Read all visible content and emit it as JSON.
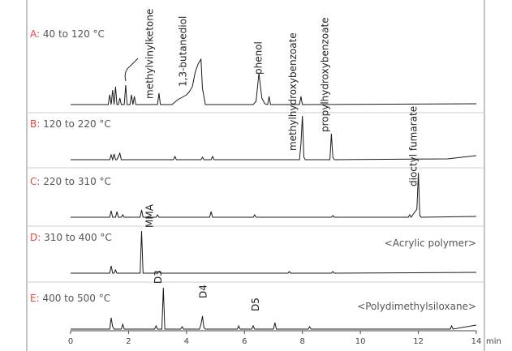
{
  "chart_data": {
    "type": "line",
    "xlim": [
      0,
      14
    ],
    "xticks": [
      0,
      2,
      4,
      6,
      8,
      10,
      12,
      14
    ],
    "xlabel": "min",
    "ylim": [
      0,
      60
    ],
    "series": [
      {
        "name": "A:",
        "label": "40 to 120 °C",
        "color": "#1a1a1a",
        "x": [
          0,
          1.3,
          1.35,
          1.4,
          1.45,
          1.5,
          1.55,
          1.6,
          1.65,
          1.7,
          1.75,
          1.85,
          1.9,
          1.95,
          2.05,
          2.1,
          2.15,
          2.2,
          2.25,
          3.0,
          3.05,
          3.1,
          3.5,
          3.7,
          3.9,
          4.0,
          4.1,
          4.2,
          4.3,
          4.4,
          4.5,
          4.55,
          4.65,
          6.3,
          6.4,
          6.5,
          6.6,
          6.7,
          6.8,
          6.85,
          6.9,
          7.9,
          7.95,
          8.0,
          14
        ],
        "values": [
          0,
          0,
          12,
          0,
          18,
          0,
          22,
          0,
          0,
          8,
          0,
          0,
          24,
          0,
          0,
          12,
          0,
          10,
          0,
          0,
          14,
          0,
          0,
          6,
          10,
          12,
          16,
          22,
          40,
          50,
          56,
          20,
          0,
          0,
          4,
          39,
          8,
          1,
          0,
          10,
          0,
          0,
          10,
          0,
          1
        ],
        "annotations": [
          {
            "text": "methylvinylketone",
            "x": 2.7
          },
          {
            "text": "1,3-butanediol",
            "x": 3.85
          },
          {
            "text": "phenol",
            "x": 6.45
          }
        ]
      },
      {
        "name": "B:",
        "label": "120 to 220 °C",
        "color": "#1a1a1a",
        "x": [
          0,
          1.35,
          1.4,
          1.45,
          1.5,
          1.55,
          1.6,
          1.7,
          1.75,
          1.8,
          3.55,
          3.6,
          3.65,
          4.5,
          4.55,
          4.6,
          4.85,
          4.9,
          4.95,
          7.9,
          7.95,
          8.0,
          8.05,
          8.1,
          8.95,
          9.0,
          9.05,
          9.1,
          13,
          14
        ],
        "values": [
          0,
          0,
          6,
          0,
          7,
          0,
          0,
          8,
          0,
          0,
          0,
          4,
          0,
          0,
          3,
          0,
          0,
          4,
          0,
          0,
          20,
          54,
          3,
          0,
          0,
          32,
          3,
          0,
          1,
          5
        ],
        "annotations": [
          {
            "text": "methylhydroxybenzoate",
            "x": 7.65
          },
          {
            "text": "propylhydroxybenzoate",
            "x": 8.75
          }
        ]
      },
      {
        "name": "C:",
        "label": "220 to 310 °C",
        "color": "#1a1a1a",
        "x": [
          0,
          1.35,
          1.4,
          1.45,
          1.55,
          1.6,
          1.65,
          1.75,
          1.8,
          1.85,
          2.4,
          2.45,
          2.5,
          2.95,
          3.0,
          3.05,
          4.8,
          4.85,
          4.9,
          6.3,
          6.35,
          6.4,
          9.0,
          9.05,
          9.1,
          11.65,
          11.7,
          11.75,
          11.95,
          12.0,
          12.05,
          12.1,
          14
        ],
        "values": [
          0,
          0,
          8,
          0,
          0,
          7,
          0,
          0,
          3,
          0,
          0,
          9,
          0,
          0,
          3,
          0,
          0,
          7,
          0,
          0,
          3,
          0,
          0,
          2,
          0,
          0,
          3,
          0,
          10,
          55,
          2,
          0,
          1
        ],
        "annotations": [
          {
            "text": "dioctyl fumarate",
            "x": 11.8
          }
        ]
      },
      {
        "name": "D:",
        "label": "310 to 400 °C",
        "note": "<Acrylic polymer>",
        "color": "#1a1a1a",
        "x": [
          0,
          1.35,
          1.4,
          1.45,
          1.5,
          1.55,
          1.6,
          2.4,
          2.45,
          2.5,
          3.0,
          3.05,
          3.1,
          7.5,
          7.55,
          7.6,
          9.0,
          9.05,
          9.1,
          14
        ],
        "values": [
          0,
          0,
          9,
          0,
          0,
          4,
          0,
          0,
          52,
          0,
          0,
          2,
          0,
          0,
          2,
          0,
          0,
          2,
          0,
          1
        ],
        "annotations": [
          {
            "text": "MMA",
            "x": 2.7
          }
        ]
      },
      {
        "name": "E:",
        "label": "400 to 500 °C",
        "note": "<Polydimethylsiloxane>",
        "color": "#1a1a1a",
        "x": [
          0,
          1.35,
          1.4,
          1.45,
          1.5,
          1.75,
          1.8,
          1.85,
          2.9,
          2.95,
          3.0,
          3.15,
          3.2,
          3.25,
          3.8,
          3.85,
          3.9,
          4.45,
          4.5,
          4.55,
          4.6,
          4.65,
          5.75,
          5.8,
          5.85,
          6.25,
          6.3,
          6.35,
          7.0,
          7.05,
          7.1,
          8.2,
          8.25,
          8.3,
          13.1,
          13.15,
          13.2,
          14
        ],
        "values": [
          0,
          0,
          14,
          3,
          0,
          0,
          6,
          0,
          0,
          4,
          0,
          0,
          51,
          0,
          0,
          3,
          0,
          0,
          6,
          16,
          2,
          0,
          0,
          4,
          0,
          0,
          4,
          0,
          0,
          8,
          0,
          0,
          3,
          0,
          0,
          4,
          0,
          5
        ],
        "annotations": [
          {
            "text": "D3",
            "x": 3.0
          },
          {
            "text": "D4",
            "x": 4.55
          },
          {
            "text": "D5",
            "x": 6.35
          }
        ]
      }
    ]
  }
}
